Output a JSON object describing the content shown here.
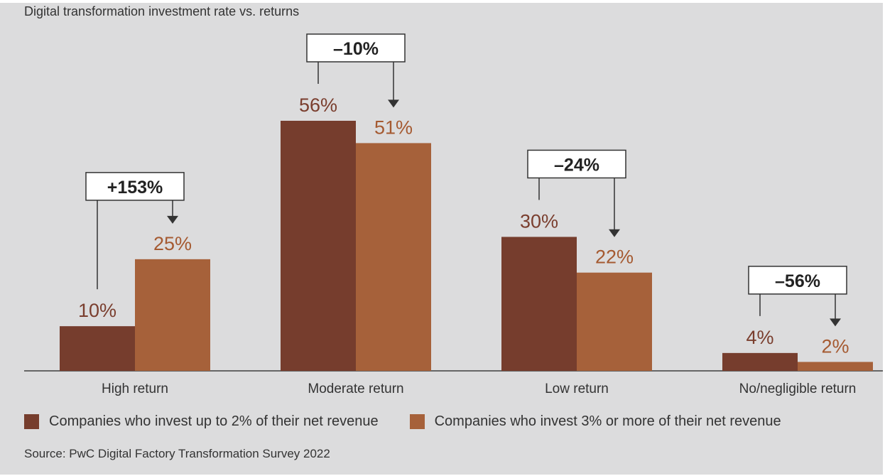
{
  "chart_data": {
    "type": "bar",
    "title": "Digital transformation investment rate vs. returns",
    "categories": [
      "High return",
      "Moderate return",
      "Low return",
      "No/negligible return"
    ],
    "series": [
      {
        "name": "Companies who invest up to 2% of their net revenue",
        "color": "#763d2d",
        "label_color": "#7a3e2e",
        "values": [
          10,
          56,
          30,
          4
        ],
        "labels": [
          "10%",
          "56%",
          "30%",
          "4%"
        ]
      },
      {
        "name": "Companies who invest 3% or more of their net revenue",
        "color": "#a6613a",
        "label_color": "#a55a31",
        "values": [
          25,
          51,
          22,
          2
        ],
        "labels": [
          "25%",
          "51%",
          "22%",
          "2%"
        ]
      }
    ],
    "changes": [
      "+153%",
      "–10%",
      "–24%",
      "–56%"
    ],
    "ylim": [
      0,
      56
    ],
    "xlabel": "",
    "ylabel": "",
    "source": "Source: PwC Digital Factory Transformation Survey 2022"
  }
}
